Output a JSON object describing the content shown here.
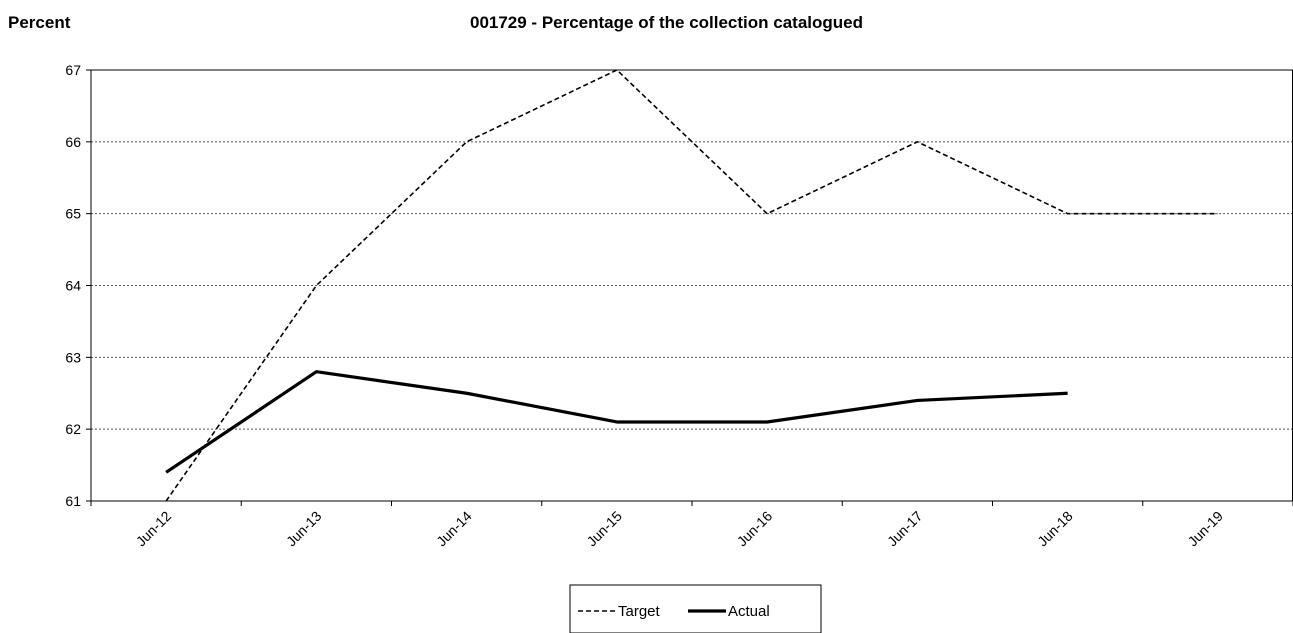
{
  "chart_data": {
    "type": "line",
    "title": "001729 - Percentage of the collection catalogued",
    "ylabel": "Percent",
    "xlabel": "",
    "categories": [
      "Jun-12",
      "Jun-13",
      "Jun-14",
      "Jun-15",
      "Jun-16",
      "Jun-17",
      "Jun-18",
      "Jun-19"
    ],
    "ylim": [
      61,
      67
    ],
    "yticks": [
      "61",
      "62",
      "63",
      "64",
      "65",
      "66",
      "67"
    ],
    "grid": true,
    "legend_position": "bottom",
    "series": [
      {
        "name": "Target",
        "style": "dashed",
        "color": "#000000",
        "values": [
          61,
          64,
          66,
          67,
          65,
          66,
          65,
          65
        ]
      },
      {
        "name": "Actual",
        "style": "solid",
        "color": "#000000",
        "values": [
          61.4,
          62.8,
          62.5,
          62.1,
          62.1,
          62.4,
          62.5,
          null
        ]
      }
    ]
  }
}
